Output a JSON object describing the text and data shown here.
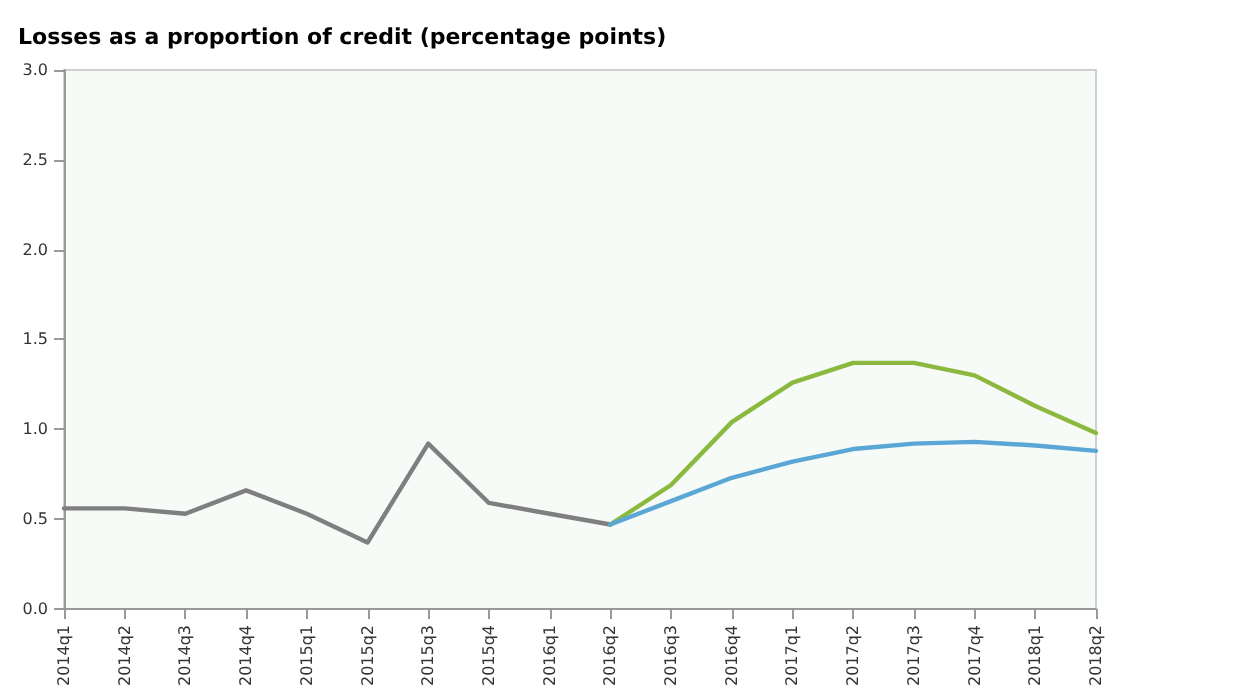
{
  "chart_data": {
    "type": "line",
    "title": "Losses as a proportion of credit (percentage points)",
    "categories": [
      "2014q1",
      "2014q2",
      "2014q3",
      "2014q4",
      "2015q1",
      "2015q2",
      "2015q3",
      "2015q4",
      "2016q1",
      "2016q2",
      "2016q3",
      "2016q4",
      "2017q1",
      "2017q2",
      "2017q3",
      "2017q4",
      "2018q1",
      "2018q2"
    ],
    "series": [
      {
        "color": "#7f7f7f",
        "values": [
          0.56,
          0.56,
          0.53,
          0.66,
          0.53,
          0.37,
          0.92,
          0.59,
          0.53,
          0.47,
          null,
          null,
          null,
          null,
          null,
          null,
          null,
          null
        ]
      },
      {
        "color": "#8bb83f",
        "values": [
          null,
          null,
          null,
          null,
          null,
          null,
          null,
          null,
          null,
          0.47,
          0.69,
          1.04,
          1.26,
          1.37,
          1.37,
          1.3,
          1.13,
          0.98
        ]
      },
      {
        "color": "#5aa7d6",
        "values": [
          null,
          null,
          null,
          null,
          null,
          null,
          null,
          null,
          null,
          0.47,
          0.6,
          0.73,
          0.82,
          0.89,
          0.92,
          0.93,
          0.91,
          0.88
        ]
      }
    ],
    "ylim": [
      0,
      3
    ],
    "yticks": [
      {
        "value": 0,
        "label": "0.0"
      },
      0.5,
      {
        "value": 1,
        "label": "1.0"
      },
      1.5,
      {
        "value": 2,
        "label": "2.0"
      },
      2.5,
      {
        "value": 3,
        "label": "3.0"
      }
    ],
    "grid": false,
    "marker": "none",
    "line_style": "solid"
  }
}
